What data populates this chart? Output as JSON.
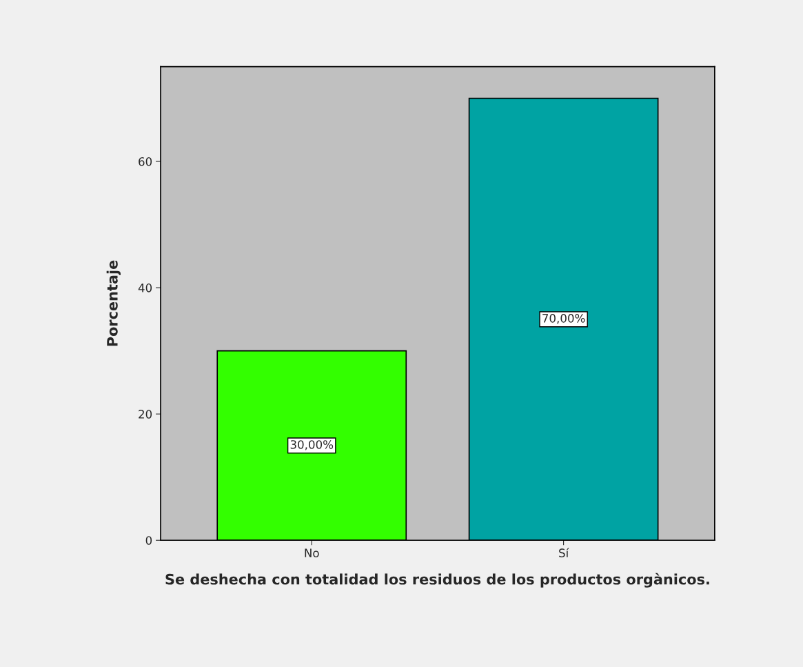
{
  "chart_data": {
    "type": "bar",
    "categories": [
      "No",
      "Sí"
    ],
    "values": [
      30,
      70
    ],
    "colors": [
      "#33ff00",
      "#00a3a3"
    ],
    "value_labels": [
      "30,00%",
      "70,00%"
    ],
    "xlabel": "Se deshecha con totalidad los residuos de los productos orgànicos.",
    "ylabel": "Porcentaje",
    "ylim": [
      0,
      75
    ],
    "yticks": [
      0,
      20,
      40,
      60
    ],
    "grid": false,
    "legend": false
  }
}
